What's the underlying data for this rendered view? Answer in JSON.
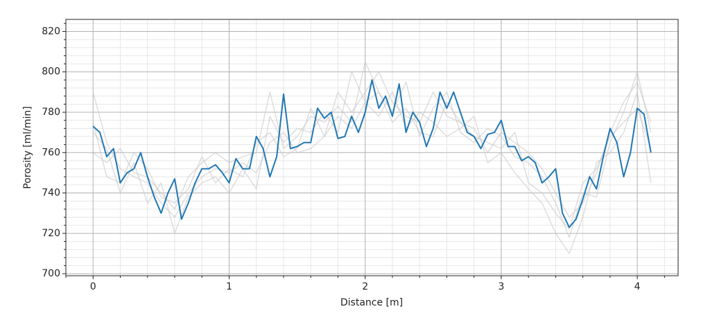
{
  "chart_data": {
    "type": "line",
    "x_label": "Distance [m]",
    "y_label": "Porosity [ml/min]",
    "xlim": [
      -0.2,
      4.3
    ],
    "ylim": [
      699,
      826
    ],
    "xticks": [
      0,
      1,
      2,
      3,
      4
    ],
    "yticks": [
      700,
      720,
      740,
      760,
      780,
      800,
      820
    ],
    "xminorticks": [
      -0.2,
      0.2,
      0.4,
      0.6,
      0.8,
      1.2,
      1.4,
      1.6,
      1.8,
      2.2,
      2.4,
      2.6,
      2.8,
      3.2,
      3.4,
      3.6,
      3.8,
      4.2
    ],
    "yminorticks": [
      704,
      708,
      712,
      716,
      724,
      728,
      732,
      736,
      744,
      748,
      752,
      756,
      764,
      768,
      772,
      776,
      784,
      788,
      792,
      796,
      804,
      808,
      812,
      816,
      824
    ],
    "grid": true,
    "series": [
      {
        "color": "#c8c8c8",
        "x": [
          0,
          0.1,
          0.2,
          0.3,
          0.4,
          0.5,
          0.6,
          0.7,
          0.8,
          0.9,
          1,
          1.1,
          1.2,
          1.3,
          1.4,
          1.5,
          1.6,
          1.7,
          1.8,
          1.9,
          2,
          2.1,
          2.2,
          2.3,
          2.4,
          2.5,
          2.6,
          2.7,
          2.8,
          2.9,
          3,
          3.1,
          3.2,
          3.3,
          3.4,
          3.5,
          3.6,
          3.7,
          3.8,
          3.9,
          4,
          4.1
        ],
        "values": [
          790,
          765,
          752,
          748,
          745,
          735,
          728,
          740,
          748,
          752,
          750,
          755,
          750,
          765,
          770,
          760,
          762,
          768,
          778,
          772,
          785,
          790,
          775,
          782,
          770,
          768,
          785,
          775,
          772,
          760,
          770,
          765,
          760,
          752,
          740,
          728,
          735,
          750,
          770,
          785,
          795,
          775
        ]
      },
      {
        "color": "#c8c8c8",
        "x": [
          0,
          0.1,
          0.2,
          0.3,
          0.4,
          0.5,
          0.6,
          0.7,
          0.8,
          0.9,
          1,
          1.1,
          1.2,
          1.3,
          1.4,
          1.5,
          1.6,
          1.7,
          1.8,
          1.9,
          2,
          2.1,
          2.2,
          2.3,
          2.4,
          2.5,
          2.6,
          2.7,
          2.8,
          2.9,
          3,
          3.1,
          3.2,
          3.3,
          3.4,
          3.5,
          3.6,
          3.7,
          3.8,
          3.9,
          4,
          4.1
        ],
        "values": [
          770,
          762,
          740,
          755,
          735,
          745,
          720,
          738,
          745,
          748,
          740,
          752,
          742,
          778,
          765,
          772,
          770,
          780,
          770,
          800,
          785,
          778,
          790,
          772,
          780,
          775,
          768,
          772,
          778,
          755,
          760,
          750,
          742,
          735,
          720,
          710,
          728,
          755,
          760,
          770,
          790,
          745
        ]
      },
      {
        "color": "#c8c8c8",
        "x": [
          0,
          0.1,
          0.2,
          0.3,
          0.4,
          0.5,
          0.6,
          0.7,
          0.8,
          0.9,
          1,
          1.1,
          1.2,
          1.3,
          1.4,
          1.5,
          1.6,
          1.7,
          1.8,
          1.9,
          2,
          2.1,
          2.2,
          2.3,
          2.4,
          2.5,
          2.6,
          2.7,
          2.8,
          2.9,
          3,
          3.1,
          3.2,
          3.3,
          3.4,
          3.5,
          3.6,
          3.7,
          3.8,
          3.9,
          4,
          4.1
        ],
        "values": [
          760,
          755,
          762,
          750,
          748,
          740,
          732,
          748,
          755,
          760,
          755,
          758,
          760,
          790,
          762,
          768,
          778,
          775,
          783,
          775,
          805,
          790,
          780,
          795,
          768,
          782,
          790,
          770,
          765,
          772,
          768,
          758,
          755,
          748,
          735,
          718,
          740,
          738,
          765,
          780,
          800,
          770
        ]
      },
      {
        "color": "#c8c8c8",
        "x": [
          0,
          0.1,
          0.2,
          0.3,
          0.4,
          0.5,
          0.6,
          0.7,
          0.8,
          0.9,
          1,
          1.1,
          1.2,
          1.3,
          1.4,
          1.5,
          1.6,
          1.7,
          1.8,
          1.9,
          2,
          2.1,
          2.2,
          2.3,
          2.4,
          2.5,
          2.6,
          2.7,
          2.8,
          2.9,
          3,
          3.1,
          3.2,
          3.3,
          3.4,
          3.5,
          3.6,
          3.7,
          3.8,
          3.9,
          4,
          4.1
        ],
        "values": [
          775,
          748,
          745,
          760,
          752,
          738,
          735,
          742,
          758,
          745,
          752,
          748,
          765,
          770,
          758,
          762,
          782,
          768,
          790,
          780,
          790,
          800,
          785,
          778,
          775,
          790,
          778,
          775,
          768,
          765,
          762,
          770,
          745,
          740,
          730,
          722,
          745,
          752,
          768,
          775,
          782,
          762
        ]
      },
      {
        "color": "#1f77b4",
        "x": [
          0,
          0.05,
          0.1,
          0.15,
          0.2,
          0.25,
          0.3,
          0.35,
          0.4,
          0.45,
          0.5,
          0.55,
          0.6,
          0.65,
          0.7,
          0.75,
          0.8,
          0.85,
          0.9,
          0.95,
          1,
          1.05,
          1.1,
          1.15,
          1.2,
          1.25,
          1.3,
          1.35,
          1.4,
          1.45,
          1.5,
          1.55,
          1.6,
          1.65,
          1.7,
          1.75,
          1.8,
          1.85,
          1.9,
          1.95,
          2,
          2.05,
          2.1,
          2.15,
          2.2,
          2.25,
          2.3,
          2.35,
          2.4,
          2.45,
          2.5,
          2.55,
          2.6,
          2.65,
          2.7,
          2.75,
          2.8,
          2.85,
          2.9,
          2.95,
          3,
          3.05,
          3.1,
          3.15,
          3.2,
          3.25,
          3.3,
          3.35,
          3.4,
          3.45,
          3.5,
          3.55,
          3.6,
          3.65,
          3.7,
          3.75,
          3.8,
          3.85,
          3.9,
          3.95,
          4,
          4.05,
          4.1
        ],
        "values": [
          773,
          770,
          758,
          762,
          745,
          750,
          752,
          760,
          748,
          738,
          730,
          740,
          747,
          727,
          735,
          745,
          752,
          752,
          754,
          750,
          745,
          757,
          752,
          752,
          768,
          762,
          748,
          758,
          789,
          762,
          763,
          765,
          765,
          782,
          777,
          780,
          767,
          768,
          778,
          770,
          780,
          796,
          782,
          788,
          778,
          794,
          770,
          780,
          775,
          763,
          772,
          790,
          782,
          790,
          780,
          770,
          768,
          762,
          769,
          770,
          776,
          763,
          763,
          756,
          758,
          755,
          745,
          748,
          752,
          730,
          723,
          727,
          737,
          748,
          742,
          758,
          772,
          765,
          748,
          760,
          782,
          779,
          760
        ]
      }
    ]
  }
}
